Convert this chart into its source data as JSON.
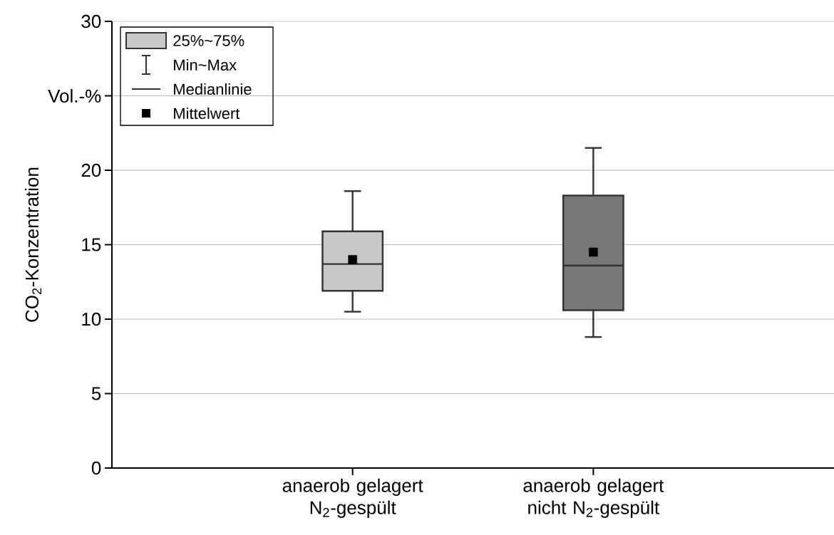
{
  "chart_data": {
    "type": "box",
    "ylabel": "CO$_{2}$-Konzentration",
    "categories": [
      "anaerob gelagert N$_{2}$-gespült",
      "anaerob gelagert nicht N$_{2}$-gespült"
    ],
    "boxes": [
      {
        "low": 10.5,
        "q1": 11.9,
        "median": 13.7,
        "q3": 15.9,
        "high": 18.6,
        "mean": 14.0
      },
      {
        "low": 8.8,
        "q1": 10.6,
        "median": 13.6,
        "q3": 18.3,
        "high": 21.5,
        "mean": 14.5
      }
    ],
    "colors": [
      "#c8c8c8",
      "#777777"
    ],
    "ylim": [
      0,
      30
    ],
    "yticks": [
      0,
      5,
      10,
      15,
      20,
      {
        "value": 25,
        "label": "Vol.-%"
      },
      30
    ],
    "grid": "y",
    "annotations": [
      "25%~75%",
      "Min~Max",
      "Medianlinie",
      "Mittelwert"
    ]
  }
}
